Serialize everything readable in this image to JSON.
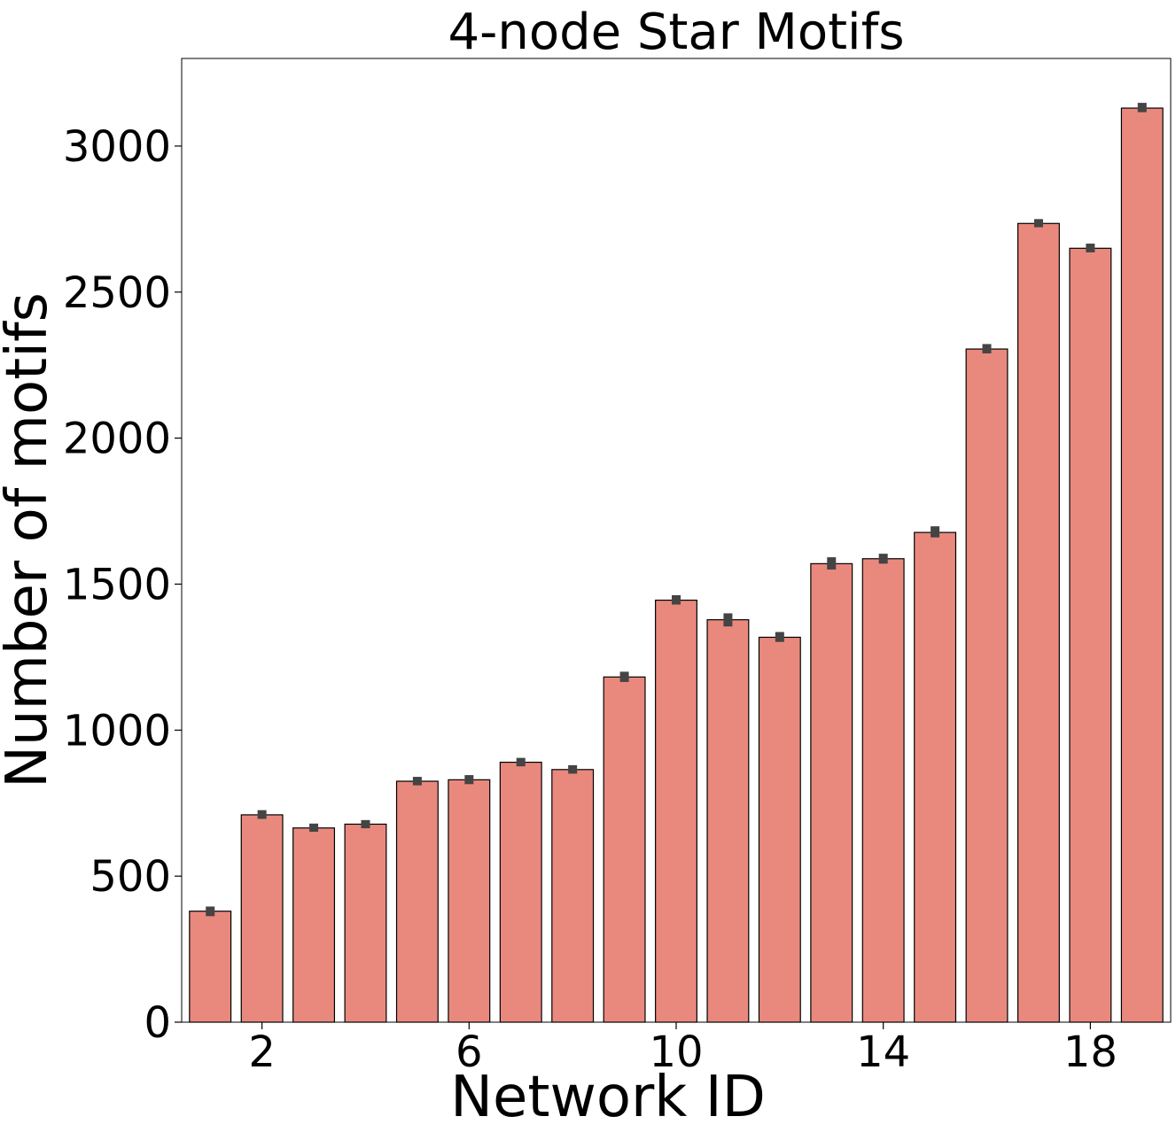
{
  "chart_data": {
    "type": "bar",
    "title": "4-node Star Motifs",
    "xlabel": "Network ID",
    "ylabel": "Number of motifs",
    "categories": [
      1,
      2,
      3,
      4,
      5,
      6,
      7,
      8,
      9,
      10,
      11,
      12,
      13,
      14,
      15,
      16,
      17,
      18,
      19
    ],
    "x_tick_labels": [
      "2",
      "6",
      "10",
      "14",
      "18"
    ],
    "x_tick_categories": [
      2,
      6,
      10,
      14,
      18
    ],
    "y_ticks": [
      0,
      500,
      1000,
      1500,
      2000,
      2500,
      3000
    ],
    "ylim": [
      0,
      3300
    ],
    "values": [
      380,
      710,
      665,
      678,
      825,
      830,
      890,
      865,
      1182,
      1445,
      1378,
      1318,
      1570,
      1587,
      1677,
      2305,
      2735,
      2650,
      3130
    ],
    "error_low": [
      363,
      696,
      652,
      664,
      811,
      815,
      876,
      851,
      1165,
      1430,
      1355,
      1302,
      1550,
      1570,
      1660,
      2290,
      2722,
      2636,
      3116
    ],
    "error_high": [
      396,
      726,
      680,
      692,
      840,
      846,
      905,
      880,
      1200,
      1462,
      1400,
      1336,
      1592,
      1604,
      1698,
      2322,
      2750,
      2666,
      3148
    ],
    "bar_color": "#e9897e",
    "error_color": "#444444",
    "grid": false,
    "legend": "none"
  }
}
